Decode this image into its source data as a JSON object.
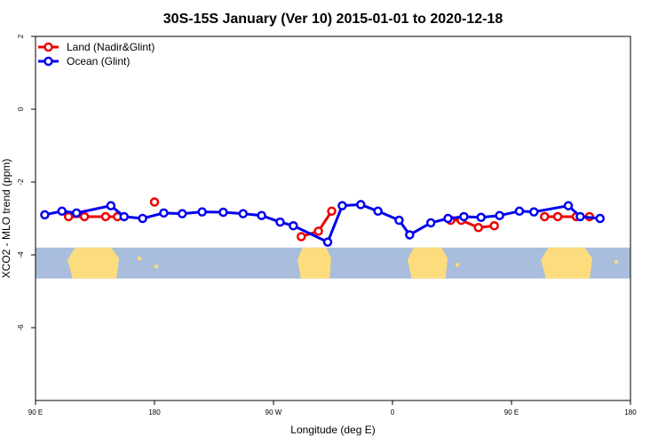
{
  "chart_data": {
    "type": "line",
    "title": "30S-15S January (Ver 10)   2015-01-01 to 2020-12-18",
    "xlabel": "Longitude (deg E)",
    "ylabel": "XCO2 - MLO trend (ppm)",
    "xlim": [
      90,
      540
    ],
    "ylim": [
      -8,
      2
    ],
    "x_ticks": [
      90,
      180,
      270,
      360,
      450,
      540
    ],
    "x_tick_labels": [
      "90 E",
      "180",
      "90 W",
      "0",
      "90 E",
      "180"
    ],
    "y_ticks": [
      2,
      0,
      -2,
      -4,
      -6
    ],
    "y_tick_labels": [
      "2",
      "0",
      "-2",
      "-4",
      "-6"
    ],
    "grid": false,
    "legend_position": "top-left",
    "map_background": {
      "y_range": [
        -3.8,
        -4.65
      ],
      "ocean_color": "#a8bedc",
      "land_color": "#fddc7d"
    },
    "series": [
      {
        "name": "Land (Nadir&Glint)",
        "color": "#ee0000",
        "points": [
          [
            115,
            -2.95
          ],
          [
            127,
            -2.95
          ],
          [
            143,
            -2.95
          ],
          [
            152,
            -2.95
          ],
          [
            null,
            null
          ],
          [
            180,
            -2.55
          ],
          [
            null,
            null
          ],
          [
            291,
            -3.5
          ],
          [
            304,
            -3.35
          ],
          [
            314,
            -2.8
          ],
          [
            null,
            null
          ],
          [
            404,
            -3.05
          ],
          [
            412,
            -3.05
          ],
          [
            425,
            -3.25
          ],
          [
            437,
            -3.2
          ],
          [
            null,
            null
          ],
          [
            475,
            -2.95
          ],
          [
            485,
            -2.95
          ],
          [
            499,
            -2.95
          ],
          [
            509,
            -2.95
          ]
        ]
      },
      {
        "name": "Ocean (Glint)",
        "color": "#0000ee",
        "points": [
          [
            97,
            -2.9
          ],
          [
            110,
            -2.8
          ],
          [
            121,
            -2.85
          ],
          [
            147,
            -2.65
          ],
          [
            157,
            -2.95
          ],
          [
            171,
            -3.0
          ],
          [
            187,
            -2.85
          ],
          [
            201,
            -2.87
          ],
          [
            216,
            -2.82
          ],
          [
            232,
            -2.83
          ],
          [
            247,
            -2.87
          ],
          [
            261,
            -2.92
          ],
          [
            275,
            -3.1
          ],
          [
            285,
            -3.2
          ],
          [
            311,
            -3.65
          ],
          [
            322,
            -2.65
          ],
          [
            336,
            -2.62
          ],
          [
            349,
            -2.8
          ],
          [
            365,
            -3.05
          ],
          [
            373,
            -3.45
          ],
          [
            389,
            -3.12
          ],
          [
            402,
            -3.0
          ],
          [
            414,
            -2.95
          ],
          [
            427,
            -2.97
          ],
          [
            441,
            -2.92
          ],
          [
            456,
            -2.8
          ],
          [
            467,
            -2.82
          ],
          [
            493,
            -2.65
          ],
          [
            502,
            -2.95
          ],
          [
            517,
            -3.0
          ]
        ]
      }
    ]
  }
}
